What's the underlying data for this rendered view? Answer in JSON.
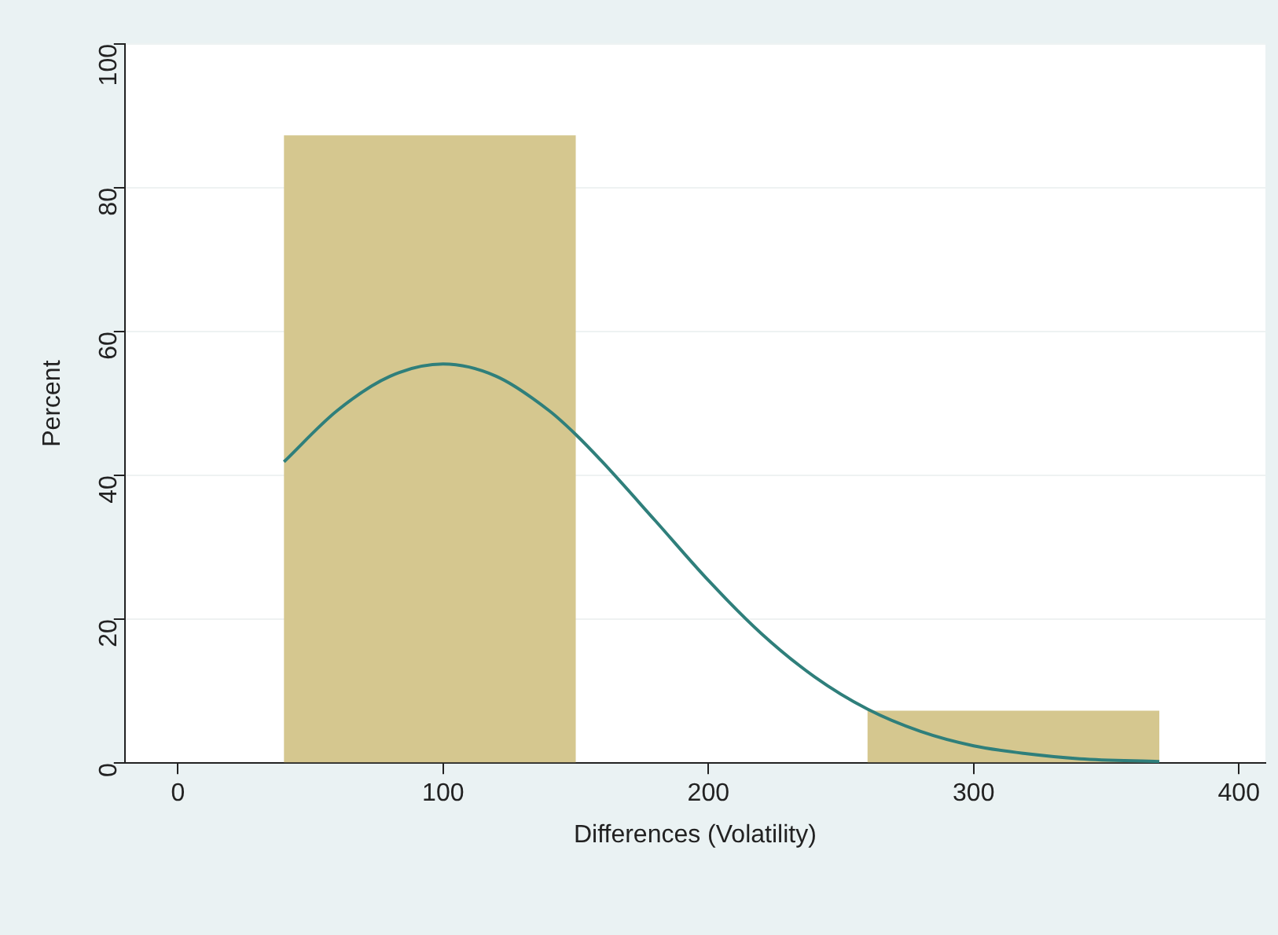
{
  "chart_data": {
    "type": "histogram",
    "xlabel": "Differences (Volatility)",
    "ylabel": "Percent",
    "bins": [
      40,
      150,
      260,
      370
    ],
    "values": [
      87.3,
      0,
      7.3
    ],
    "color": "#d5c78f",
    "series": [
      {
        "type": "line",
        "color": "#2f7f7b",
        "x": [
          40,
          60,
          80,
          100,
          120,
          140,
          150,
          160,
          180,
          200,
          220,
          240,
          260,
          280,
          300,
          320,
          340,
          370
        ],
        "values": [
          41.9,
          49.0,
          53.8,
          55.5,
          53.8,
          49.0,
          45.7,
          41.9,
          33.7,
          25.4,
          18.0,
          12.0,
          7.5,
          4.4,
          2.4,
          1.3,
          0.6,
          0.2
        ]
      }
    ],
    "xlim": [
      -20,
      410
    ],
    "xticks": [
      0,
      100,
      200,
      300,
      400
    ],
    "ylim": [
      0,
      100
    ],
    "yticks": [
      0,
      20,
      40,
      60,
      80,
      100
    ],
    "grid": "y"
  }
}
